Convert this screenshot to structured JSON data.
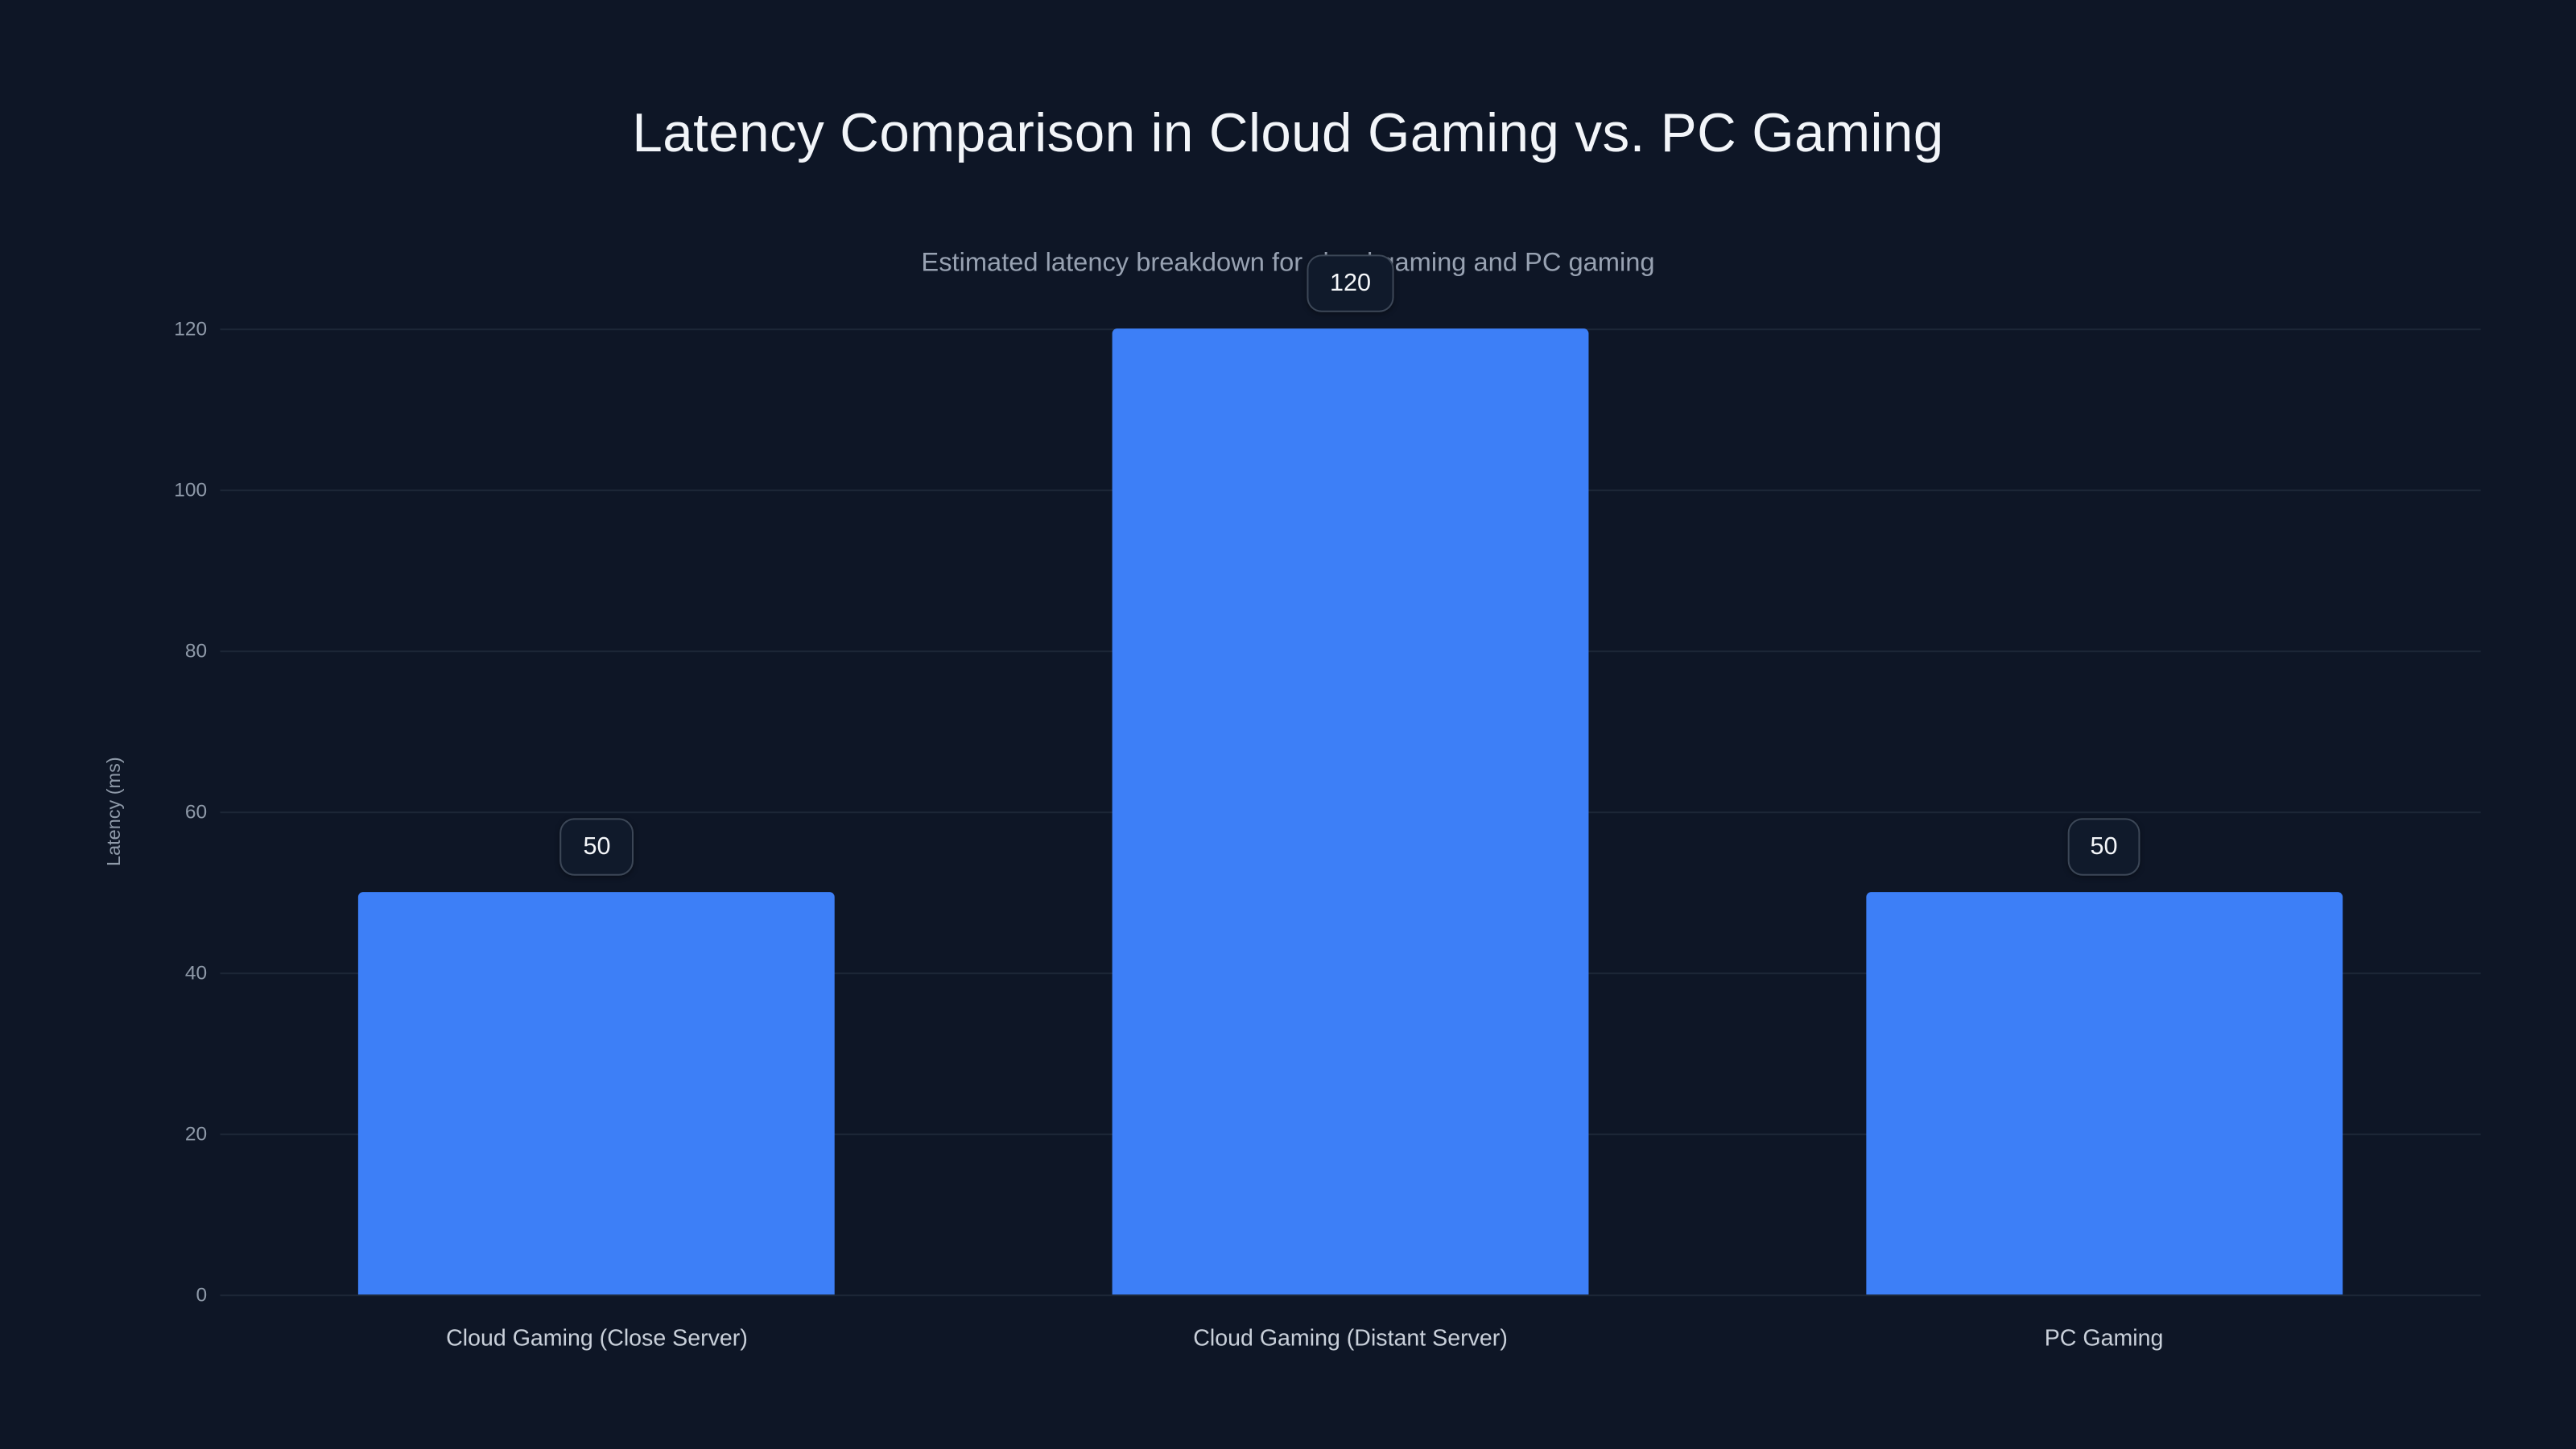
{
  "chart_data": {
    "type": "bar",
    "title": "Latency Comparison in Cloud Gaming vs. PC Gaming",
    "subtitle": "Estimated latency breakdown for cloud gaming and PC gaming",
    "categories": [
      "Cloud Gaming (Close Server)",
      "Cloud Gaming (Distant Server)",
      "PC Gaming"
    ],
    "values": [
      50,
      120,
      50
    ],
    "value_labels": [
      "50",
      "120",
      "50"
    ],
    "xlabel": "",
    "ylabel": "Latency (ms)",
    "ylim": [
      0,
      120
    ],
    "yticks": [
      0,
      20,
      40,
      60,
      80,
      100,
      120
    ],
    "grid": true,
    "legend": false,
    "colors": {
      "background": "#0e1626",
      "bar": "#3d7ff7",
      "gridline": "#1d2737",
      "title_text": "#f2f5f9",
      "subtitle_text": "#98a2b2",
      "tick_text": "#8e99a8",
      "category_text": "#c9d0da",
      "badge_border": "#3c4757"
    }
  }
}
